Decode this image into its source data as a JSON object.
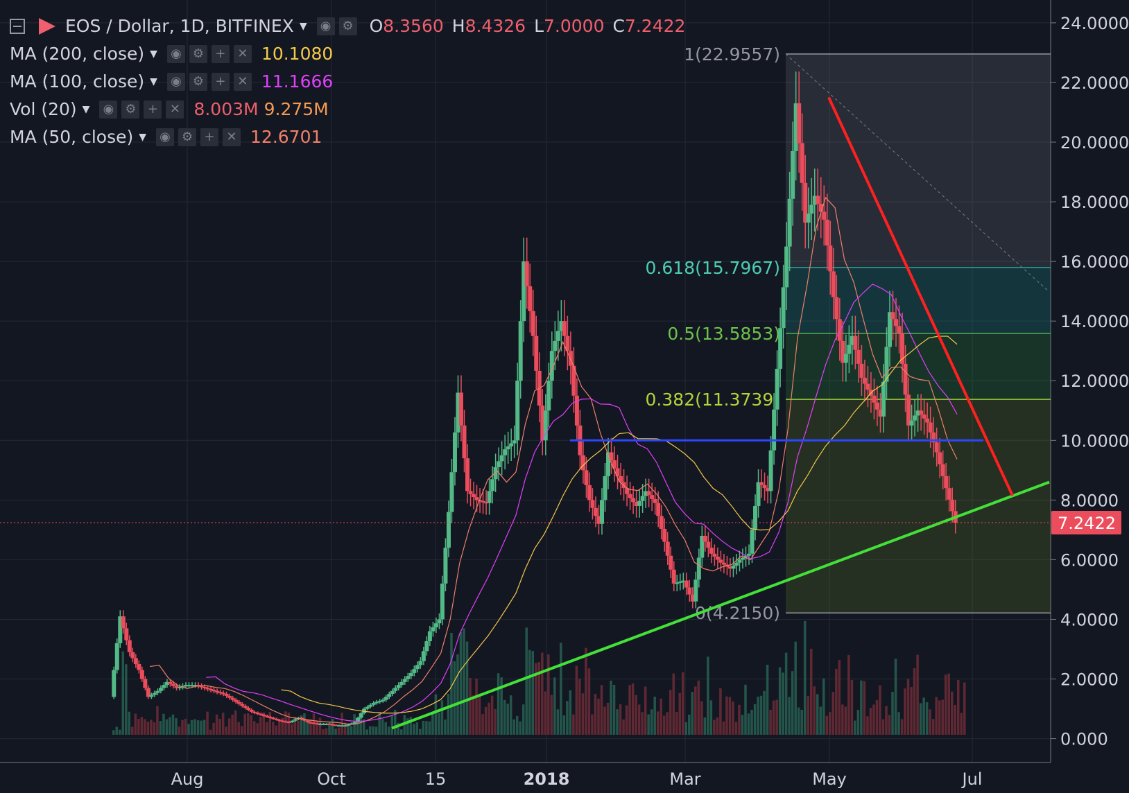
{
  "header": {
    "symbol": "EOS / Dollar, 1D, BITFINEX",
    "open_label": "O",
    "open": "8.3560",
    "high_label": "H",
    "high": "8.4326",
    "low_label": "L",
    "low": "7.0000",
    "close_label": "C",
    "close": "7.2422"
  },
  "indicators": [
    {
      "label": "MA (200, close)",
      "value": "10.1080",
      "color": "#f5c94b"
    },
    {
      "label": "MA (100, close)",
      "value": "11.1666",
      "color": "#e040fb"
    },
    {
      "label": "Vol (20)",
      "value": "8.003M",
      "value2": "9.275M",
      "color": "#ef5f6d",
      "color2": "#f59a53"
    },
    {
      "label": "MA (50, close)",
      "value": "12.6701",
      "color": "#f0806a"
    }
  ],
  "chart_data": {
    "type": "candlestick",
    "y_axis": {
      "ticks": [
        "24.0000",
        "22.0000",
        "20.0000",
        "18.0000",
        "16.0000",
        "14.0000",
        "12.0000",
        "10.0000",
        "8.0000",
        "6.0000",
        "4.0000",
        "2.0000",
        "0.000"
      ],
      "range": [
        -0.8,
        24.3
      ],
      "position": "right"
    },
    "x_axis": {
      "ticks": [
        "Aug",
        "Oct",
        "15",
        "2018",
        "Mar",
        "May",
        "Jul"
      ]
    },
    "last_price": "7.2422",
    "fibonacci": [
      {
        "label": "1(22.9557)",
        "value": 22.9557
      },
      {
        "label": "0.618(15.7967)",
        "value": 15.7967
      },
      {
        "label": "0.5(13.5853)",
        "value": 13.5853
      },
      {
        "label": "0.382(11.3739)",
        "value": 11.3739
      },
      {
        "label": "0(4.2150)",
        "value": 4.215
      }
    ],
    "trendlines": [
      {
        "name": "support",
        "color": "#44e03a",
        "from": 0.35,
        "to": 8.6
      },
      {
        "name": "resistance",
        "color": "#ff2020",
        "from": 21.5,
        "to": 8.15
      },
      {
        "name": "horizontal",
        "color": "#2d47ff",
        "value": 10.0
      }
    ],
    "price_series": [
      1.4,
      4.1,
      2.9,
      2.3,
      1.4,
      1.6,
      1.9,
      1.7,
      1.8,
      1.8,
      1.7,
      1.6,
      1.5,
      1.3,
      1.1,
      0.9,
      0.8,
      0.7,
      0.6,
      0.55,
      0.7,
      0.55,
      0.5,
      0.5,
      0.45,
      0.45,
      0.55,
      1.0,
      1.2,
      1.3,
      1.6,
      1.9,
      2.2,
      2.6,
      3.6,
      4.0,
      7.6,
      11.6,
      8.3,
      8.0,
      7.9,
      9.1,
      9.7,
      10.0,
      16.0,
      13.5,
      10.0,
      13.0,
      14.0,
      12.5,
      9.5,
      8.0,
      7.2,
      9.6,
      8.8,
      8.2,
      7.8,
      8.3,
      7.9,
      6.6,
      5.2,
      5.3,
      4.6,
      6.8,
      6.2,
      5.9,
      5.7,
      6.0,
      6.2,
      8.6,
      8.3,
      12.4,
      16.5,
      21.3,
      17.3,
      18.2,
      17.4,
      14.8,
      12.6,
      13.5,
      12.1,
      11.5,
      10.8,
      14.3,
      13.6,
      10.5,
      11.0,
      10.6,
      9.6,
      8.4,
      7.24
    ]
  }
}
